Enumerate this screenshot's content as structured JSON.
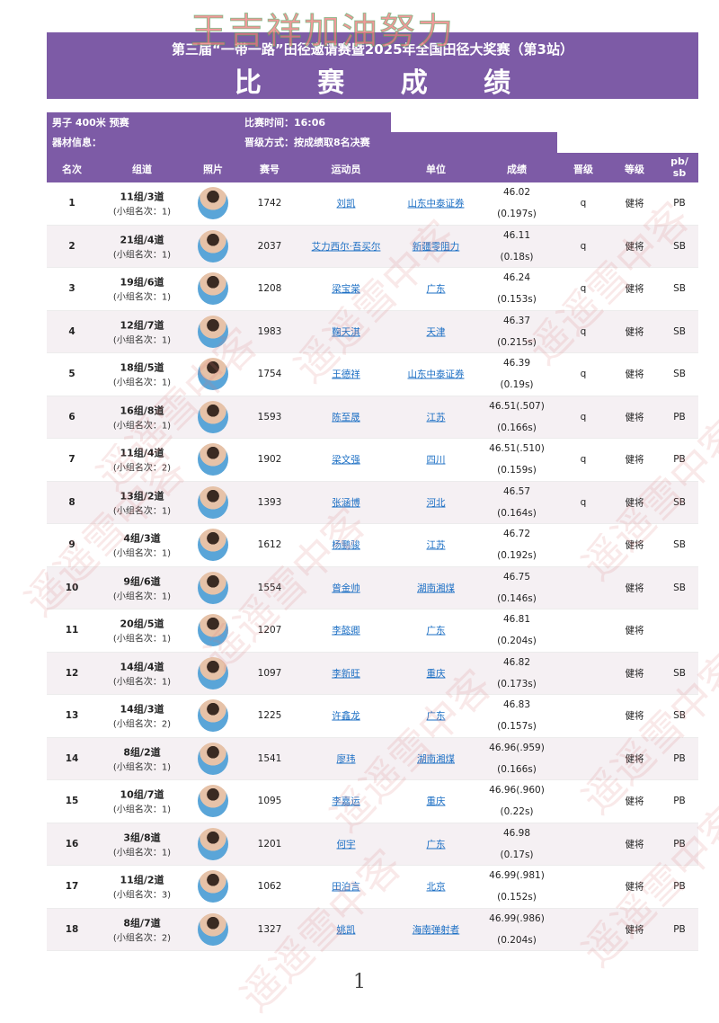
{
  "overlay_text": "王吉祥加油努力",
  "watermark": "遥遥雪中客",
  "header": {
    "subtitle": "第三届“一带一路”田径邀请赛暨2025年全国田径大奖赛（第3站）",
    "title": "比 赛 成 绩"
  },
  "info": {
    "event": "男子 400米 预赛",
    "time": "比赛时间：16:06",
    "equipment": "器材信息：",
    "advance": "晋级方式：按成绩取8名决赛"
  },
  "columns": [
    "名次",
    "组道",
    "照片",
    "赛号",
    "运动员",
    "单位",
    "成绩",
    "晋级",
    "等级",
    "pb/ sb"
  ],
  "colors": {
    "header_purple": "#7d5ba6",
    "link": "#1c6fc4",
    "row_alt": "#f5f0f3"
  },
  "rows": [
    {
      "rank": "1",
      "group": "11组/3道",
      "sub": "(小组名次：1)",
      "bib": "1742",
      "name": "刘凯",
      "unit": "山东中泰证券",
      "result": "46.02",
      "reaction": "(0.197s)",
      "q": "q",
      "level": "健将",
      "pb": "PB"
    },
    {
      "rank": "2",
      "group": "21组/4道",
      "sub": "(小组名次：1)",
      "bib": "2037",
      "name": "艾力西尔·吾买尔",
      "unit": "新疆零阻力",
      "result": "46.11",
      "reaction": "(0.18s)",
      "q": "q",
      "level": "健将",
      "pb": "SB"
    },
    {
      "rank": "3",
      "group": "19组/6道",
      "sub": "(小组名次：1)",
      "bib": "1208",
      "name": "梁宝棠",
      "unit": "广东",
      "result": "46.24",
      "reaction": "(0.153s)",
      "q": "q",
      "level": "健将",
      "pb": "SB"
    },
    {
      "rank": "4",
      "group": "12组/7道",
      "sub": "(小组名次：1)",
      "bib": "1983",
      "name": "鞠天淇",
      "unit": "天津",
      "result": "46.37",
      "reaction": "(0.215s)",
      "q": "q",
      "level": "健将",
      "pb": "SB"
    },
    {
      "rank": "5",
      "group": "18组/5道",
      "sub": "(小组名次：1)",
      "bib": "1754",
      "name": "王德祥",
      "unit": "山东中泰证券",
      "result": "46.39",
      "reaction": "(0.19s)",
      "q": "q",
      "level": "健将",
      "pb": "SB"
    },
    {
      "rank": "6",
      "group": "16组/8道",
      "sub": "(小组名次：1)",
      "bib": "1593",
      "name": "陈至晟",
      "unit": "江苏",
      "result": "46.51(.507)",
      "reaction": "(0.166s)",
      "q": "q",
      "level": "健将",
      "pb": "PB"
    },
    {
      "rank": "7",
      "group": "11组/4道",
      "sub": "(小组名次：2)",
      "bib": "1902",
      "name": "梁文强",
      "unit": "四川",
      "result": "46.51(.510)",
      "reaction": "(0.159s)",
      "q": "q",
      "level": "健将",
      "pb": "PB"
    },
    {
      "rank": "8",
      "group": "13组/2道",
      "sub": "(小组名次：1)",
      "bib": "1393",
      "name": "张涵博",
      "unit": "河北",
      "result": "46.57",
      "reaction": "(0.164s)",
      "q": "q",
      "level": "健将",
      "pb": "SB"
    },
    {
      "rank": "9",
      "group": "4组/3道",
      "sub": "(小组名次：1)",
      "bib": "1612",
      "name": "杨鹏骏",
      "unit": "江苏",
      "result": "46.72",
      "reaction": "(0.192s)",
      "q": "",
      "level": "健将",
      "pb": "SB"
    },
    {
      "rank": "10",
      "group": "9组/6道",
      "sub": "(小组名次：1)",
      "bib": "1554",
      "name": "曾金帅",
      "unit": "湖南湘煤",
      "result": "46.75",
      "reaction": "(0.146s)",
      "q": "",
      "level": "健将",
      "pb": "SB"
    },
    {
      "rank": "11",
      "group": "20组/5道",
      "sub": "(小组名次：1)",
      "bib": "1207",
      "name": "李懿卿",
      "unit": "广东",
      "result": "46.81",
      "reaction": "(0.204s)",
      "q": "",
      "level": "健将",
      "pb": ""
    },
    {
      "rank": "12",
      "group": "14组/4道",
      "sub": "(小组名次：1)",
      "bib": "1097",
      "name": "李新旺",
      "unit": "重庆",
      "result": "46.82",
      "reaction": "(0.173s)",
      "q": "",
      "level": "健将",
      "pb": "SB"
    },
    {
      "rank": "13",
      "group": "14组/3道",
      "sub": "(小组名次：2)",
      "bib": "1225",
      "name": "许鑫龙",
      "unit": "广东",
      "result": "46.83",
      "reaction": "(0.157s)",
      "q": "",
      "level": "健将",
      "pb": "SB"
    },
    {
      "rank": "14",
      "group": "8组/2道",
      "sub": "(小组名次：1)",
      "bib": "1541",
      "name": "廖玮",
      "unit": "湖南湘煤",
      "result": "46.96(.959)",
      "reaction": "(0.166s)",
      "q": "",
      "level": "健将",
      "pb": "PB"
    },
    {
      "rank": "15",
      "group": "10组/7道",
      "sub": "(小组名次：1)",
      "bib": "1095",
      "name": "李嘉运",
      "unit": "重庆",
      "result": "46.96(.960)",
      "reaction": "(0.22s)",
      "q": "",
      "level": "健将",
      "pb": "PB"
    },
    {
      "rank": "16",
      "group": "3组/8道",
      "sub": "(小组名次：1)",
      "bib": "1201",
      "name": "何宇",
      "unit": "广东",
      "result": "46.98",
      "reaction": "(0.17s)",
      "q": "",
      "level": "健将",
      "pb": "PB"
    },
    {
      "rank": "17",
      "group": "11组/2道",
      "sub": "(小组名次：3)",
      "bib": "1062",
      "name": "田泊言",
      "unit": "北京",
      "result": "46.99(.981)",
      "reaction": "(0.152s)",
      "q": "",
      "level": "健将",
      "pb": "PB"
    },
    {
      "rank": "18",
      "group": "8组/7道",
      "sub": "(小组名次：2)",
      "bib": "1327",
      "name": "姚凯",
      "unit": "海南弹射者",
      "result": "46.99(.986)",
      "reaction": "(0.204s)",
      "q": "",
      "level": "健将",
      "pb": "PB"
    }
  ],
  "page_number": "1"
}
